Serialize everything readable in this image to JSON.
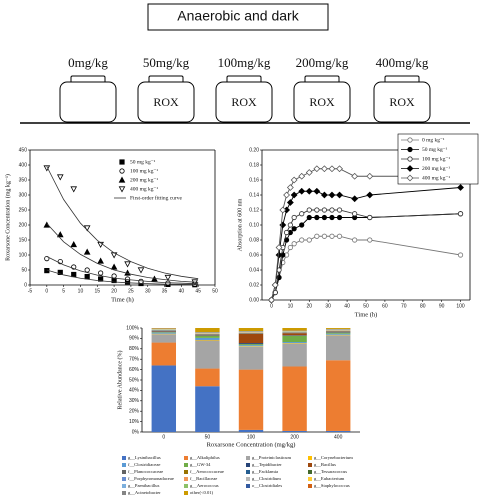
{
  "header": {
    "title": "Anaerobic and dark",
    "doses": [
      "0mg/kg",
      "50mg/kg",
      "100mg/kg",
      "200mg/kg",
      "400mg/kg"
    ],
    "bottle_label": "ROX"
  },
  "chart_data": [
    {
      "type": "scatter",
      "xlabel": "Time (h)",
      "ylabel": "Roxarsone Concentration (mg kg⁻¹)",
      "xlim": [
        -5,
        50
      ],
      "xticks": [
        -5,
        0,
        5,
        10,
        15,
        20,
        25,
        30,
        35,
        40,
        45,
        50
      ],
      "ylim": [
        0,
        450
      ],
      "yticks": [
        0,
        50,
        100,
        150,
        200,
        250,
        300,
        350,
        400,
        450
      ],
      "legend": "upper right",
      "series": [
        {
          "name": "50 mg kg⁻¹",
          "color": "#000000",
          "marker": "square",
          "x": [
            0,
            4,
            8,
            12,
            16,
            20,
            24,
            28,
            36,
            44
          ],
          "values": [
            48,
            42,
            35,
            28,
            20,
            15,
            10,
            5,
            2,
            1
          ]
        },
        {
          "name": "100 mg kg⁻¹",
          "color": "#000000",
          "marker": "circle-open",
          "x": [
            0,
            4,
            8,
            12,
            16,
            20,
            24,
            28,
            36,
            44
          ],
          "values": [
            88,
            78,
            60,
            50,
            40,
            30,
            20,
            12,
            6,
            3
          ]
        },
        {
          "name": "200 mg kg⁻¹",
          "color": "#000000",
          "marker": "triangle",
          "x": [
            0,
            4,
            8,
            12,
            16,
            20,
            24,
            32
          ],
          "values": [
            200,
            168,
            135,
            110,
            80,
            60,
            40,
            20
          ]
        },
        {
          "name": "400 mg kg⁻¹",
          "color": "#000000",
          "marker": "triangle-down-open",
          "x": [
            0,
            4,
            8,
            12,
            16,
            20,
            24,
            28,
            36,
            44
          ],
          "values": [
            390,
            360,
            320,
            190,
            135,
            100,
            70,
            50,
            25,
            10
          ]
        },
        {
          "name": "First-order fitting curve",
          "color": "#333333",
          "marker": "line",
          "x": [
            0,
            5,
            10,
            15,
            20,
            25,
            30,
            35,
            40,
            45
          ],
          "lines": [
            [
              50,
              33.5,
              22.5,
              15.1,
              10.1,
              6.8,
              4.5,
              3,
              2,
              1.4
            ],
            [
              95,
              67,
              47,
              33,
              23,
              17,
              12,
              8,
              6,
              4
            ],
            [
              205,
              144,
              102,
              72,
              50,
              36,
              25,
              18,
              12,
              9
            ],
            [
              395,
              285,
              206,
              149,
              107,
              78,
              56,
              40,
              29,
              21
            ]
          ]
        }
      ]
    },
    {
      "type": "line",
      "xlabel": "Time (h)",
      "ylabel": "Absorption at 600 nm",
      "x": [
        0,
        2,
        4,
        6,
        8,
        10,
        12,
        16,
        20,
        24,
        28,
        32,
        36,
        44,
        52,
        100
      ],
      "xlim": [
        -5,
        105
      ],
      "xticks": [
        0,
        10,
        20,
        30,
        40,
        50,
        60,
        70,
        80,
        90,
        100
      ],
      "ylim": [
        0,
        0.2
      ],
      "yticks": [
        {
          "value": 0,
          "label": "0.00"
        },
        {
          "value": 0.02,
          "label": "0.02"
        },
        {
          "value": 0.04,
          "label": "0.04"
        },
        {
          "value": 0.06,
          "label": "0.06"
        },
        {
          "value": 0.08,
          "label": "0.08"
        },
        {
          "value": 0.1,
          "label": "0.10"
        },
        {
          "value": 0.12,
          "label": "0.12"
        },
        {
          "value": 0.14,
          "label": "0.14"
        },
        {
          "value": 0.16,
          "label": "0.16"
        },
        {
          "value": 0.18,
          "label": "0.18"
        },
        {
          "value": 0.2,
          "label": "0.20"
        }
      ],
      "legend": "upper right",
      "series": [
        {
          "name": "0 mg kg⁻¹",
          "color": "#777777",
          "marker": "circle-open",
          "values": [
            0,
            0.01,
            0.03,
            0.05,
            0.06,
            0.07,
            0.075,
            0.08,
            0.08,
            0.085,
            0.085,
            0.085,
            0.085,
            0.08,
            0.08,
            0.06
          ]
        },
        {
          "name": "50 mg kg⁻¹",
          "color": "#000000",
          "marker": "circle",
          "values": [
            0,
            0.01,
            0.03,
            0.06,
            0.08,
            0.09,
            0.095,
            0.1,
            0.11,
            0.11,
            0.11,
            0.11,
            0.11,
            0.11,
            0.11,
            0.115
          ]
        },
        {
          "name": "100 mg kg⁻¹",
          "color": "#333333",
          "marker": "circle-open",
          "values": [
            0,
            0.01,
            0.04,
            0.07,
            0.09,
            0.1,
            0.11,
            0.115,
            0.12,
            0.12,
            0.12,
            0.12,
            0.12,
            0.115,
            0.11,
            0.115
          ]
        },
        {
          "name": "200 mg kg⁻¹",
          "color": "#000000",
          "marker": "diamond",
          "values": [
            0,
            0.02,
            0.06,
            0.1,
            0.12,
            0.13,
            0.14,
            0.145,
            0.145,
            0.145,
            0.14,
            0.14,
            0.14,
            0.135,
            0.14,
            0.15
          ]
        },
        {
          "name": "400 mg kg⁻¹",
          "color": "#555555",
          "marker": "diamond-open",
          "values": [
            0,
            0.02,
            0.07,
            0.12,
            0.14,
            0.15,
            0.16,
            0.165,
            0.17,
            0.175,
            0.175,
            0.175,
            0.175,
            0.165,
            0.165,
            0.165
          ]
        }
      ]
    },
    {
      "type": "stacked_bar",
      "xlabel": "Roxarsone Concentration (mg/kg)",
      "ylabel": "Relative Abundance (%)",
      "categories": [
        "0",
        "50",
        "100",
        "200",
        "400"
      ],
      "ylim": [
        0,
        100
      ],
      "yticks": [
        {
          "value": 0,
          "label": "0%"
        },
        {
          "value": 10,
          "label": "10%"
        },
        {
          "value": 20,
          "label": "20%"
        },
        {
          "value": 30,
          "label": "30%"
        },
        {
          "value": 40,
          "label": "40%"
        },
        {
          "value": 50,
          "label": "50%"
        },
        {
          "value": 60,
          "label": "60%"
        },
        {
          "value": 70,
          "label": "70%"
        },
        {
          "value": 80,
          "label": "80%"
        },
        {
          "value": 90,
          "label": "90%"
        },
        {
          "value": 100,
          "label": "100%"
        }
      ],
      "legend": "bottom",
      "series": [
        {
          "name": "g__Lysinibacillus",
          "color": "#4472c4",
          "values": [
            64,
            44,
            2,
            1,
            1
          ]
        },
        {
          "name": "g__Alkaliphilus",
          "color": "#ed7d31",
          "values": [
            22,
            17,
            58,
            62,
            68
          ]
        },
        {
          "name": "g__Proteiniclasticum",
          "color": "#a5a5a5",
          "values": [
            8,
            27,
            22,
            22,
            24
          ]
        },
        {
          "name": "g__Corynebacterium",
          "color": "#ffc000",
          "values": [
            0.5,
            0.5,
            0.5,
            0.5,
            0.5
          ]
        },
        {
          "name": "f__Clostridiaceae",
          "color": "#5b9bd5",
          "values": [
            1,
            2,
            1,
            1,
            1
          ]
        },
        {
          "name": "g__GW-34",
          "color": "#70ad47",
          "values": [
            0.5,
            2,
            1,
            6,
            1
          ]
        },
        {
          "name": "g__Tepidibacter",
          "color": "#264478",
          "values": [
            0.5,
            0.5,
            1,
            0.5,
            0.5
          ]
        },
        {
          "name": "g__Bacillus",
          "color": "#9e480e",
          "values": [
            0.5,
            0.5,
            9,
            2,
            0.5
          ]
        },
        {
          "name": "f__Planococcaceae",
          "color": "#636363",
          "values": [
            0.2,
            0.2,
            0.2,
            0.2,
            0.2
          ]
        },
        {
          "name": "f__Aerococcaceae",
          "color": "#997300",
          "values": [
            0.2,
            0.2,
            0.2,
            0.2,
            0.2
          ]
        },
        {
          "name": "g__Facklamia",
          "color": "#255e91",
          "values": [
            0.2,
            0.2,
            0.2,
            0.2,
            0.2
          ]
        },
        {
          "name": "g__Tessaracoccus",
          "color": "#43682b",
          "values": [
            0.2,
            0.2,
            0.2,
            0.2,
            0.2
          ]
        },
        {
          "name": "f__Porphyromonadaceae",
          "color": "#698ed0",
          "values": [
            0.2,
            0.2,
            0.2,
            0.2,
            0.2
          ]
        },
        {
          "name": "f__Bacillaceae",
          "color": "#f1975a",
          "values": [
            0.2,
            0.2,
            0.2,
            0.2,
            0.2
          ]
        },
        {
          "name": "g__Clostridium",
          "color": "#b7b7b7",
          "values": [
            0.2,
            0.2,
            0.2,
            0.2,
            0.2
          ]
        },
        {
          "name": "g__Eubacterium",
          "color": "#ffcd33",
          "values": [
            0.2,
            0.2,
            0.2,
            0.2,
            0.2
          ]
        },
        {
          "name": "g__Paenibacillus",
          "color": "#7cafdd",
          "values": [
            0.2,
            0.2,
            0.2,
            0.2,
            0.2
          ]
        },
        {
          "name": "g__Aerococcus",
          "color": "#8cc168",
          "values": [
            0.2,
            0.2,
            0.2,
            0.2,
            0.2
          ]
        },
        {
          "name": "o__Clostridiales",
          "color": "#335aa1",
          "values": [
            0.2,
            0.2,
            0.2,
            0.2,
            0.2
          ]
        },
        {
          "name": "g__Staphylococcus",
          "color": "#d26012",
          "values": [
            0.2,
            0.2,
            0.2,
            0.2,
            0.2
          ]
        },
        {
          "name": "g__Acinetobacter",
          "color": "#848484",
          "values": [
            0.2,
            0.2,
            0.2,
            0.2,
            0.2
          ]
        },
        {
          "name": "other(<0.01)",
          "color": "#cc9a00",
          "values": [
            0.4,
            3.9,
            2.9,
            2.4,
            0.9
          ]
        }
      ]
    }
  ]
}
